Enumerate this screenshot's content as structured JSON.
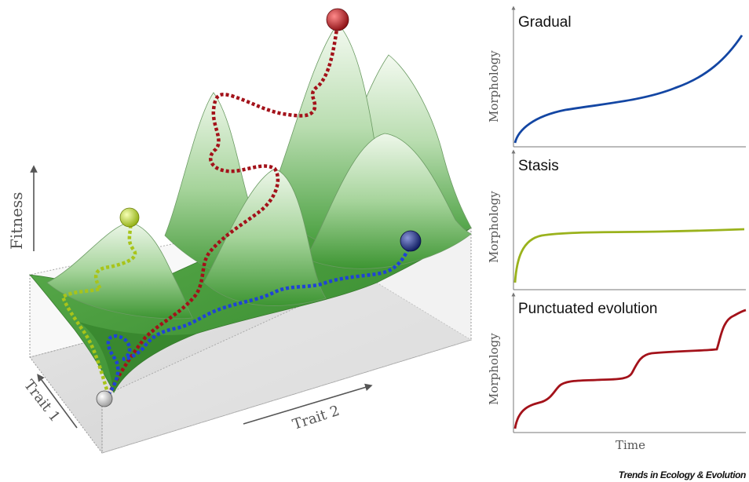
{
  "landscape": {
    "fitness_label": "Fitness",
    "trait1_label": "Trait 1",
    "trait2_label": "Trait 2",
    "colors": {
      "red_path": "#a3121a",
      "green_path": "#a8c41a",
      "blue_path": "#1f43d6",
      "surface": "#4aa13c",
      "floor": "#d9d9d9"
    }
  },
  "panels": [
    {
      "title": "Gradual",
      "ylabel": "Morphology",
      "color": "#1346a3"
    },
    {
      "title": "Stasis",
      "ylabel": "Morphology",
      "color": "#9ab21c"
    },
    {
      "title": "Punctuated evolution",
      "ylabel": "Morphology",
      "color": "#a3121a"
    }
  ],
  "xlabel": "Time",
  "credit": "Trends in Ecology & Evolution"
}
